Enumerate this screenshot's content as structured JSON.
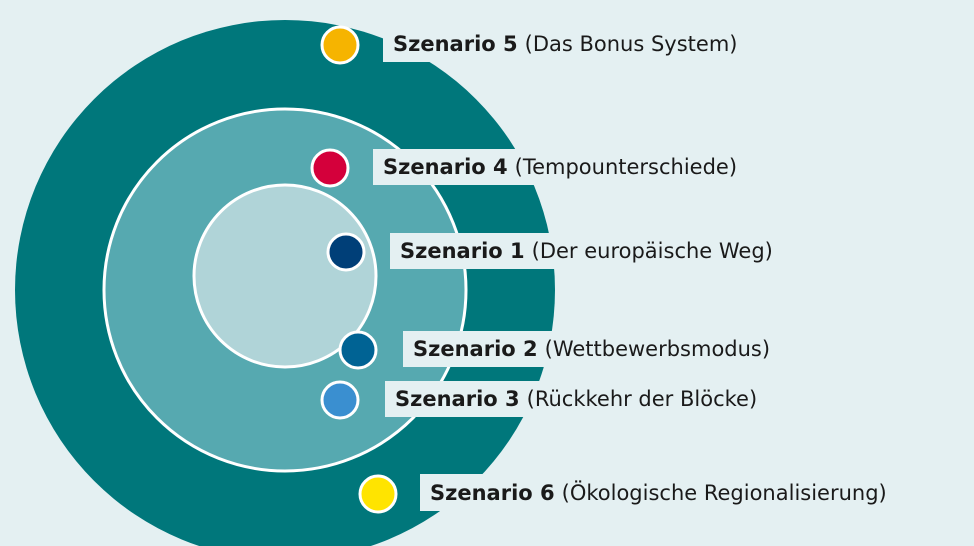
{
  "nodes": [
    {
      "name": "Szenario 5",
      "description": "(Das Bonus System)",
      "color": "#f6b400"
    },
    {
      "name": "Szenario 4",
      "description": "(Tempounterschiede)",
      "color": "#d4003b"
    },
    {
      "name": "Szenario 1",
      "description": "(Der europäische Weg)",
      "color": "#003f78"
    },
    {
      "name": "Szenario 2",
      "description": "(Wettbewerbsmodus)",
      "color": "#006394"
    },
    {
      "name": "Szenario 3",
      "description": "(Rückkehr der Blöcke)",
      "color": "#3a8fd0"
    },
    {
      "name": "Szenario 6",
      "description": "(Ökologische Regionalisierung)",
      "color": "#ffe400"
    }
  ]
}
